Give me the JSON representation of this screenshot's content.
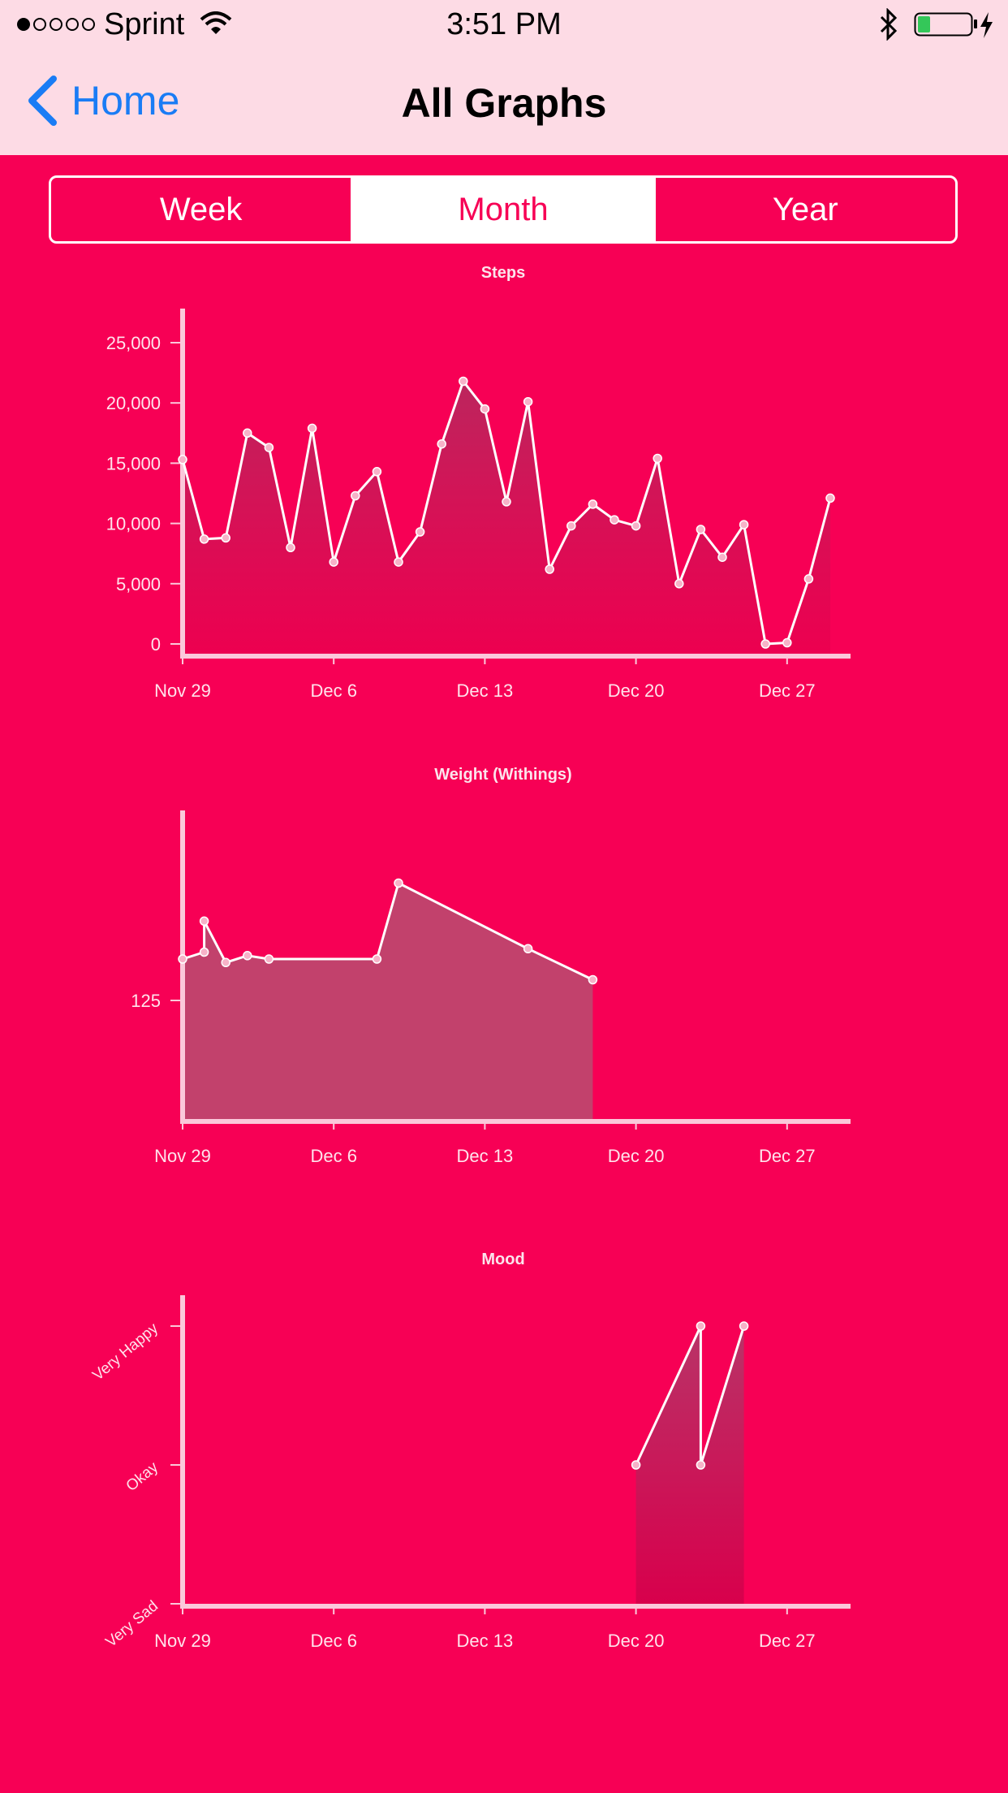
{
  "status": {
    "carrier": "Sprint",
    "time": "3:51 PM"
  },
  "nav": {
    "back": "Home",
    "title": "All Graphs"
  },
  "tabs": [
    {
      "label": "Week",
      "selected": false
    },
    {
      "label": "Month",
      "selected": true
    },
    {
      "label": "Year",
      "selected": false
    }
  ],
  "colors": {
    "background": "#f70055",
    "bar": "#fddbe5",
    "accent": "#1a7cf5",
    "axis": "#fbc8da"
  },
  "x_ticks": [
    "Nov 29",
    "Dec 6",
    "Dec 13",
    "Dec 20",
    "Dec 27"
  ],
  "chart_data": [
    {
      "type": "area",
      "title": "Steps",
      "x_range": [
        "2016-11-29",
        "2016-12-30"
      ],
      "ylim": [
        0,
        25000
      ],
      "yticks": [
        "0",
        "5,000",
        "10,000",
        "15,000",
        "20,000",
        "25,000"
      ],
      "x": [
        "2016-11-29",
        "2016-11-30",
        "2016-12-01",
        "2016-12-02",
        "2016-12-03",
        "2016-12-04",
        "2016-12-05",
        "2016-12-06",
        "2016-12-07",
        "2016-12-08",
        "2016-12-09",
        "2016-12-10",
        "2016-12-11",
        "2016-12-12",
        "2016-12-13",
        "2016-12-14",
        "2016-12-15",
        "2016-12-16",
        "2016-12-17",
        "2016-12-18",
        "2016-12-19",
        "2016-12-20",
        "2016-12-21",
        "2016-12-22",
        "2016-12-23",
        "2016-12-24",
        "2016-12-25",
        "2016-12-26",
        "2016-12-27",
        "2016-12-28",
        "2016-12-29"
      ],
      "values": [
        15300,
        8700,
        8800,
        17500,
        16300,
        8000,
        17900,
        6800,
        12300,
        14300,
        6800,
        9300,
        16600,
        21800,
        19500,
        11800,
        20100,
        6200,
        9800,
        11600,
        10300,
        9800,
        15400,
        5000,
        9500,
        7200,
        9900,
        0,
        100,
        5400,
        12100
      ]
    },
    {
      "type": "area",
      "title": "Weight (Withings)",
      "x_range": [
        "2016-11-29",
        "2016-12-30"
      ],
      "ylim": [
        120,
        135
      ],
      "yticks": [
        "125"
      ],
      "x": [
        "2016-11-29",
        "2016-11-30",
        "2016-11-30",
        "2016-12-01",
        "2016-12-02",
        "2016-12-03",
        "2016-12-08",
        "2016-12-09",
        "2016-12-15",
        "2016-12-18"
      ],
      "values": [
        126.2,
        126.4,
        127.3,
        126.1,
        126.3,
        126.2,
        126.2,
        128.4,
        126.5,
        125.6
      ]
    },
    {
      "type": "area",
      "title": "Mood",
      "x_range": [
        "2016-11-29",
        "2016-12-30"
      ],
      "yticks": [
        "Very Sad",
        "Okay",
        "Very Happy"
      ],
      "ylim": [
        0,
        2
      ],
      "x": [
        "2016-12-20",
        "2016-12-23",
        "2016-12-23",
        "2016-12-25"
      ],
      "values": [
        1,
        2,
        1,
        2
      ]
    }
  ]
}
